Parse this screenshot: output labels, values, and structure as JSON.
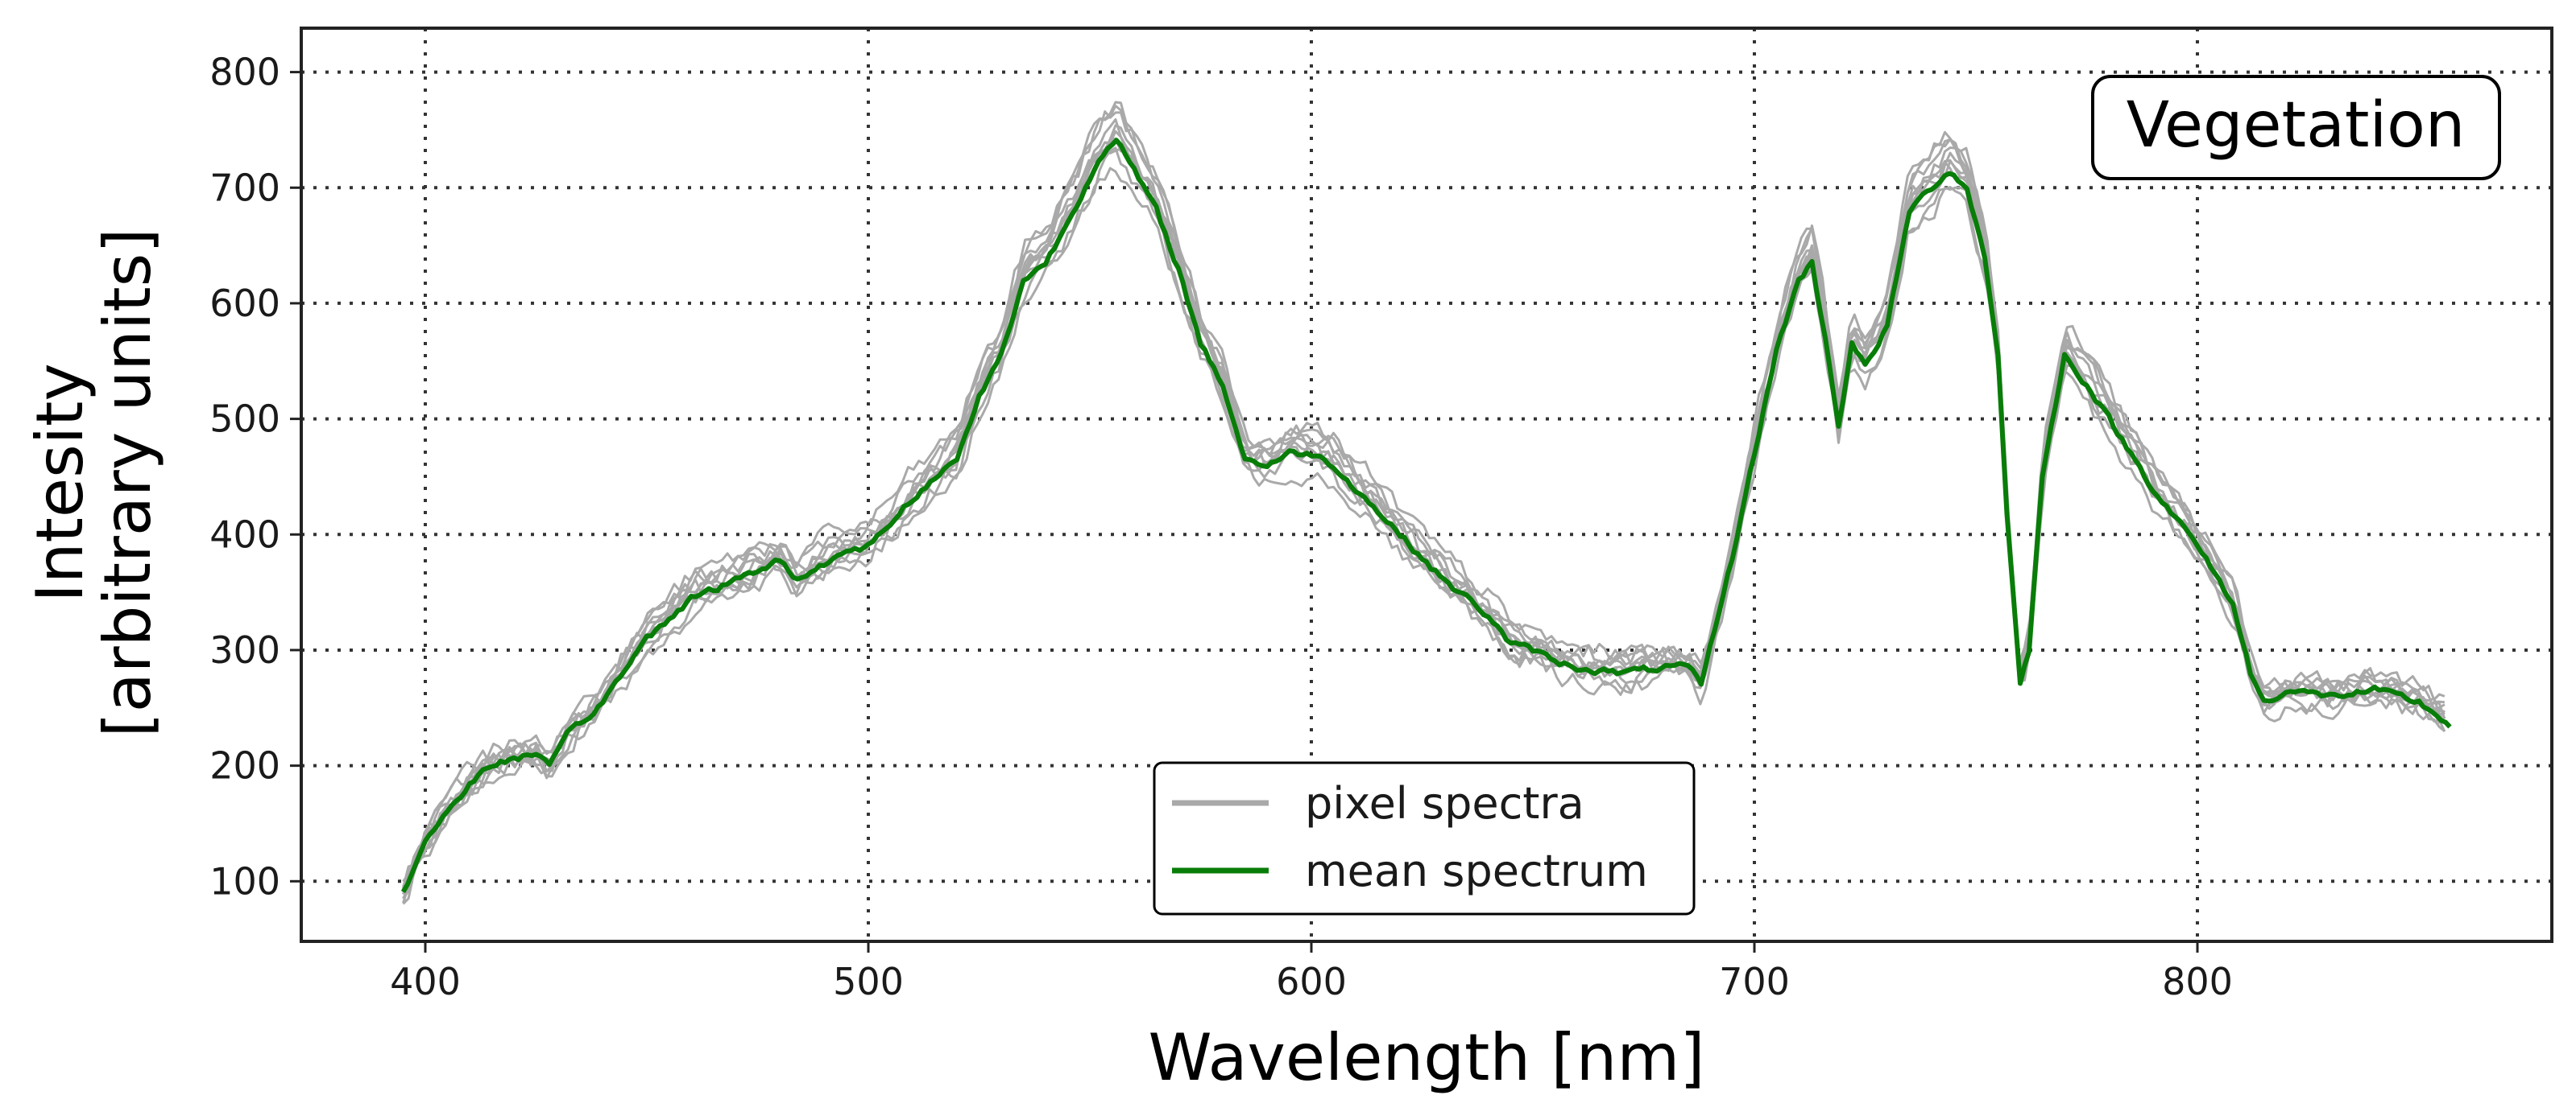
{
  "chart_data": {
    "type": "line",
    "title": "",
    "xlabel": "Wavelength [nm]",
    "ylabel_lines": [
      "Intesity",
      "[arbitrary units]"
    ],
    "xlim": [
      372,
      880
    ],
    "ylim": [
      48,
      838
    ],
    "xticks": [
      400,
      500,
      600,
      700,
      800
    ],
    "yticks": [
      100,
      200,
      300,
      400,
      500,
      600,
      700,
      800
    ],
    "grid": true,
    "legend": {
      "placement": "lower-center",
      "entries": [
        {
          "label": "pixel spectra",
          "color": "#a9a9a9"
        },
        {
          "label": "mean spectrum",
          "color": "#087d08"
        }
      ]
    },
    "annotation": "Vegetation",
    "colors": {
      "pixel": "#a9a9a9",
      "mean": "#087d08"
    },
    "series": [
      {
        "name": "mean spectrum",
        "x": [
          395,
          400,
          405,
          410,
          415,
          420,
          425,
          428,
          432,
          440,
          450,
          460,
          470,
          480,
          484,
          488,
          495,
          500,
          505,
          510,
          515,
          520,
          525,
          530,
          535,
          540,
          545,
          550,
          553,
          556,
          560,
          565,
          570,
          575,
          580,
          585,
          590,
          595,
          600,
          605,
          610,
          620,
          630,
          640,
          645,
          650,
          655,
          660,
          670,
          680,
          685,
          688,
          695,
          700,
          705,
          710,
          713,
          716,
          719,
          722,
          725,
          730,
          735,
          740,
          744,
          748,
          752,
          755,
          757,
          760,
          762,
          765,
          770,
          775,
          780,
          790,
          800,
          808,
          812,
          815,
          820,
          830,
          840,
          850,
          857
        ],
        "values": [
          90,
          135,
          160,
          185,
          200,
          207,
          210,
          198,
          225,
          255,
          310,
          345,
          360,
          378,
          360,
          372,
          385,
          390,
          410,
          432,
          448,
          465,
          520,
          555,
          620,
          635,
          670,
          710,
          730,
          740,
          715,
          680,
          630,
          565,
          530,
          465,
          460,
          470,
          470,
          460,
          440,
          400,
          360,
          330,
          305,
          300,
          290,
          285,
          280,
          285,
          285,
          270,
          380,
          470,
          560,
          620,
          635,
          570,
          495,
          565,
          545,
          580,
          680,
          700,
          715,
          700,
          640,
          555,
          420,
          270,
          300,
          450,
          555,
          530,
          500,
          440,
          390,
          340,
          280,
          255,
          265,
          260,
          265,
          255,
          235
        ]
      }
    ]
  }
}
